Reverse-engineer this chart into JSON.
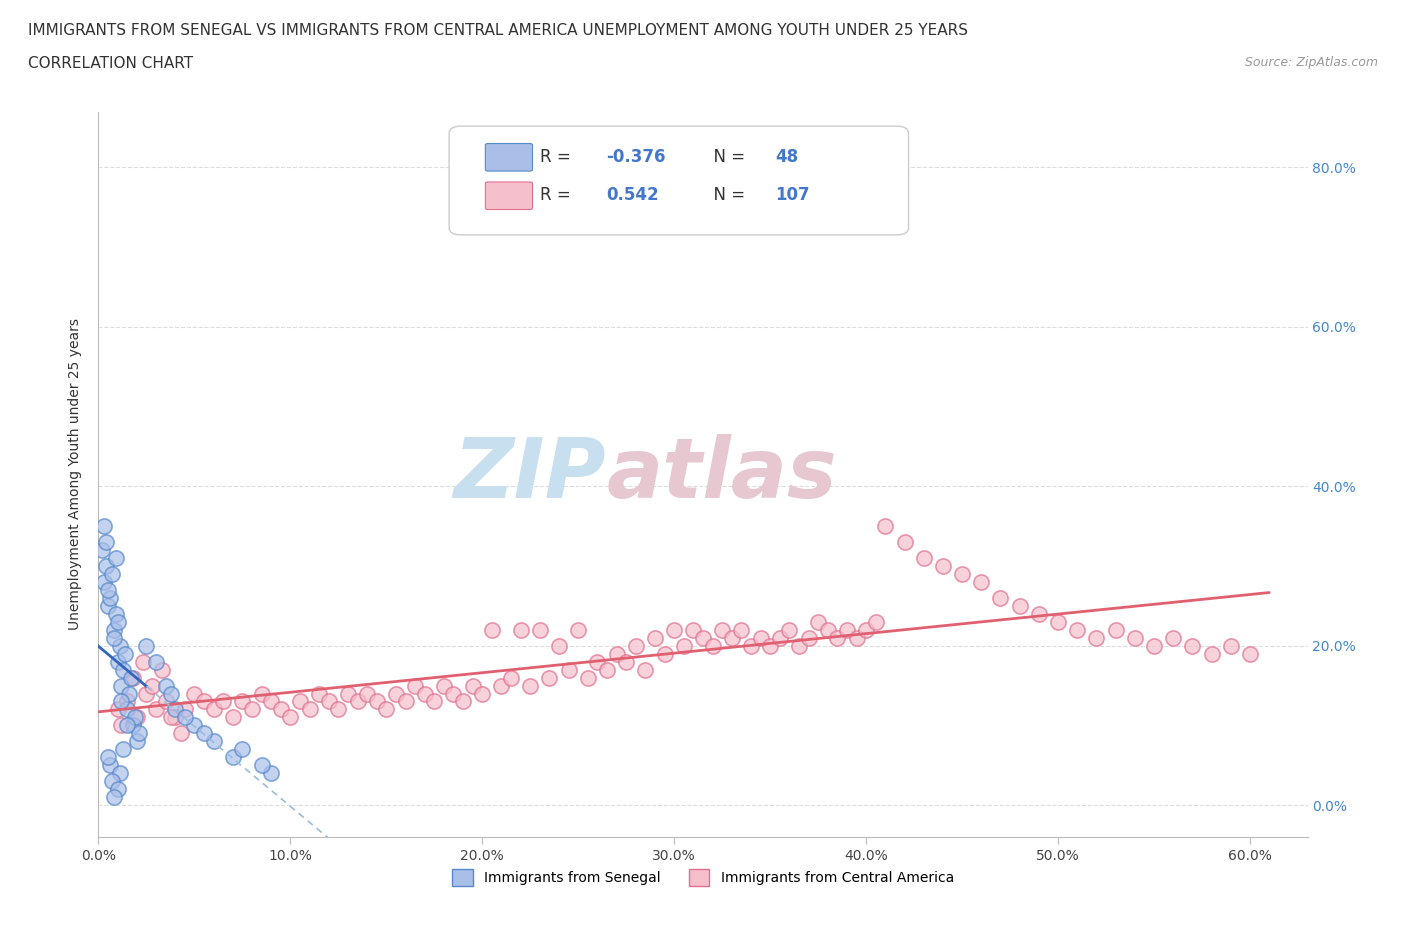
{
  "title_line1": "IMMIGRANTS FROM SENEGAL VS IMMIGRANTS FROM CENTRAL AMERICA UNEMPLOYMENT AMONG YOUTH UNDER 25 YEARS",
  "title_line2": "CORRELATION CHART",
  "source_text": "Source: ZipAtlas.com",
  "ylabel": "Unemployment Among Youth under 25 years",
  "xlim": [
    0.0,
    63.0
  ],
  "ylim": [
    -4.0,
    87.0
  ],
  "senegal_R": -0.376,
  "senegal_N": 48,
  "central_america_R": 0.542,
  "central_america_N": 107,
  "senegal_color": "#aabfe8",
  "senegal_edge_color": "#5588cc",
  "central_america_color": "#f5c0cc",
  "central_america_edge_color": "#e07090",
  "trend_line_senegal_color": "#3366bb",
  "trend_line_senegal_dashed_color": "#99bbdd",
  "trend_line_ca_color": "#e06070",
  "watermark_zip_color": "#c8dff0",
  "watermark_atlas_color": "#e8c8d0",
  "background_color": "#ffffff",
  "grid_color": "#dddddd",
  "title_fontsize": 11,
  "axis_label_fontsize": 10,
  "tick_fontsize": 10,
  "legend_fontsize": 12,
  "senegal_x": [
    0.3,
    0.5,
    0.8,
    1.0,
    1.2,
    1.5,
    1.8,
    2.0,
    0.2,
    0.4,
    0.6,
    0.9,
    1.1,
    1.3,
    1.6,
    1.9,
    2.1,
    0.3,
    0.7,
    1.0,
    1.4,
    1.7,
    0.5,
    0.8,
    1.2,
    1.5,
    0.4,
    0.9,
    1.3,
    0.6,
    1.1,
    0.7,
    1.0,
    0.5,
    0.8,
    3.5,
    4.0,
    5.0,
    6.0,
    7.0,
    9.0,
    2.5,
    3.0,
    3.8,
    4.5,
    5.5,
    7.5,
    8.5
  ],
  "senegal_y": [
    28,
    25,
    22,
    18,
    15,
    12,
    10,
    8,
    32,
    30,
    26,
    24,
    20,
    17,
    14,
    11,
    9,
    35,
    29,
    23,
    19,
    16,
    27,
    21,
    13,
    10,
    33,
    31,
    7,
    5,
    4,
    3,
    2,
    6,
    1,
    15,
    12,
    10,
    8,
    6,
    4,
    20,
    18,
    14,
    11,
    9,
    7,
    5
  ],
  "ca_x": [
    1.0,
    1.5,
    2.0,
    2.5,
    3.0,
    3.5,
    4.0,
    4.5,
    5.0,
    5.5,
    6.0,
    6.5,
    7.0,
    7.5,
    8.0,
    8.5,
    9.0,
    9.5,
    10.0,
    10.5,
    11.0,
    11.5,
    12.0,
    12.5,
    13.0,
    13.5,
    14.0,
    14.5,
    15.0,
    15.5,
    16.0,
    16.5,
    17.0,
    17.5,
    18.0,
    18.5,
    19.0,
    19.5,
    20.0,
    20.5,
    21.0,
    21.5,
    22.0,
    22.5,
    23.0,
    23.5,
    24.0,
    24.5,
    25.0,
    25.5,
    26.0,
    26.5,
    27.0,
    27.5,
    28.0,
    28.5,
    29.0,
    29.5,
    30.0,
    30.5,
    31.0,
    31.5,
    32.0,
    32.5,
    33.0,
    33.5,
    34.0,
    34.5,
    35.0,
    35.5,
    36.0,
    36.5,
    37.0,
    37.5,
    38.0,
    38.5,
    39.0,
    39.5,
    40.0,
    40.5,
    41.0,
    42.0,
    43.0,
    44.0,
    45.0,
    46.0,
    47.0,
    48.0,
    49.0,
    50.0,
    51.0,
    52.0,
    53.0,
    54.0,
    55.0,
    56.0,
    57.0,
    58.0,
    59.0,
    60.0,
    1.2,
    1.8,
    2.3,
    2.8,
    3.3,
    3.8,
    4.3
  ],
  "ca_y": [
    12,
    13,
    11,
    14,
    12,
    13,
    11,
    12,
    14,
    13,
    12,
    13,
    11,
    13,
    12,
    14,
    13,
    12,
    11,
    13,
    12,
    14,
    13,
    12,
    14,
    13,
    14,
    13,
    12,
    14,
    13,
    15,
    14,
    13,
    15,
    14,
    13,
    15,
    14,
    22,
    15,
    16,
    22,
    15,
    22,
    16,
    20,
    17,
    22,
    16,
    18,
    17,
    19,
    18,
    20,
    17,
    21,
    19,
    22,
    20,
    22,
    21,
    20,
    22,
    21,
    22,
    20,
    21,
    20,
    21,
    22,
    20,
    21,
    23,
    22,
    21,
    22,
    21,
    22,
    23,
    35,
    33,
    31,
    30,
    29,
    28,
    26,
    25,
    24,
    23,
    22,
    21,
    22,
    21,
    20,
    21,
    20,
    19,
    20,
    19,
    10,
    16,
    18,
    15,
    17,
    11,
    9
  ]
}
